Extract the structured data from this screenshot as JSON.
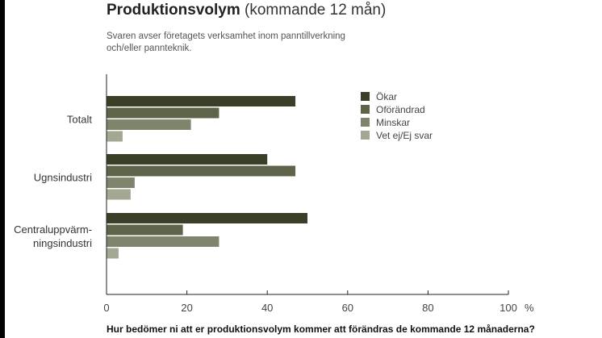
{
  "header": {
    "title_bold": "Produktionsvolym",
    "title_rest": " (kommande 12 mån)",
    "subtitle": "Svaren avser företagets verksamhet inom panntillverkning och/eller pannteknik."
  },
  "footer": {
    "question": "Hur bedömer ni att er produktionsvolym kommer att förändras de kommande 12 månaderna?"
  },
  "chart_data": {
    "type": "bar",
    "orientation": "horizontal",
    "title": "Produktionsvolym (kommande 12 mån)",
    "xlabel": "%",
    "xlim": [
      0,
      100
    ],
    "x_ticks": [
      0,
      20,
      40,
      60,
      80,
      100
    ],
    "unit_label": "%",
    "grid": false,
    "legend_position": "top-right",
    "categories": [
      {
        "name": "Totalt",
        "lines": [
          "Totalt"
        ]
      },
      {
        "name": "Ugnsindustri",
        "lines": [
          "Ugnsindustri"
        ]
      },
      {
        "name": "Centraluppvärmningsindustri",
        "lines": [
          "Centraluppvärm-",
          "ningsindustri"
        ]
      }
    ],
    "series": [
      {
        "name": "Ökar",
        "color": "#3a4028",
        "values": [
          47,
          40,
          50
        ]
      },
      {
        "name": "Oförändrad",
        "color": "#5e6449",
        "values": [
          28,
          47,
          19
        ]
      },
      {
        "name": "Minskar",
        "color": "#7f846c",
        "values": [
          21,
          7,
          28
        ]
      },
      {
        "name": "Vet ej/Ej svar",
        "color": "#a3a893",
        "values": [
          4,
          6,
          3
        ]
      }
    ]
  }
}
